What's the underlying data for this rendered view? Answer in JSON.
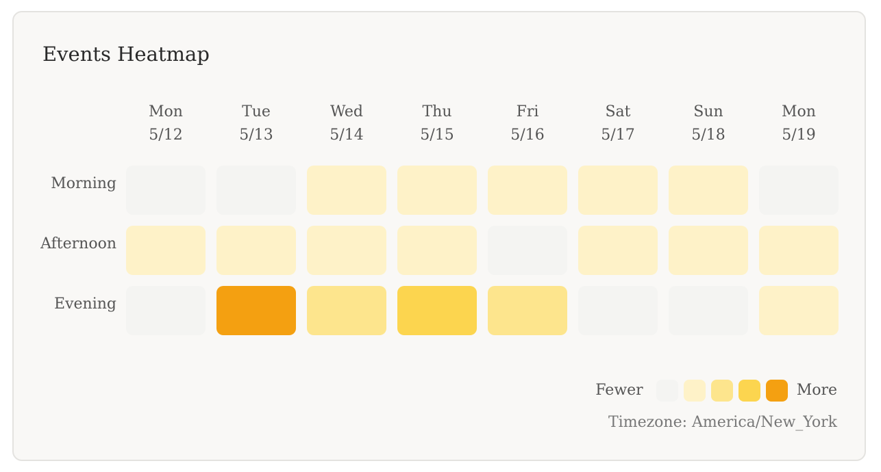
{
  "title": "Events Heatmap",
  "chart_data": {
    "type": "heatmap",
    "title": "Events Heatmap",
    "columns": [
      {
        "day": "Mon",
        "date": "5/12"
      },
      {
        "day": "Tue",
        "date": "5/13"
      },
      {
        "day": "Wed",
        "date": "5/14"
      },
      {
        "day": "Thu",
        "date": "5/15"
      },
      {
        "day": "Fri",
        "date": "5/16"
      },
      {
        "day": "Sat",
        "date": "5/17"
      },
      {
        "day": "Sun",
        "date": "5/18"
      },
      {
        "day": "Mon",
        "date": "5/19"
      }
    ],
    "rows": [
      "Morning",
      "Afternoon",
      "Evening"
    ],
    "levels": [
      [
        0,
        0,
        1,
        1,
        1,
        1,
        1,
        0
      ],
      [
        1,
        1,
        1,
        1,
        0,
        1,
        1,
        1
      ],
      [
        0,
        4,
        2,
        3,
        2,
        0,
        0,
        1
      ]
    ],
    "level_colors": [
      "#f4f4f2",
      "#fef2c8",
      "#fde58d",
      "#fcd54f",
      "#f4a011"
    ]
  },
  "legend": {
    "fewer_label": "Fewer",
    "more_label": "More"
  },
  "timezone_text": "Timezone: America/New_York"
}
